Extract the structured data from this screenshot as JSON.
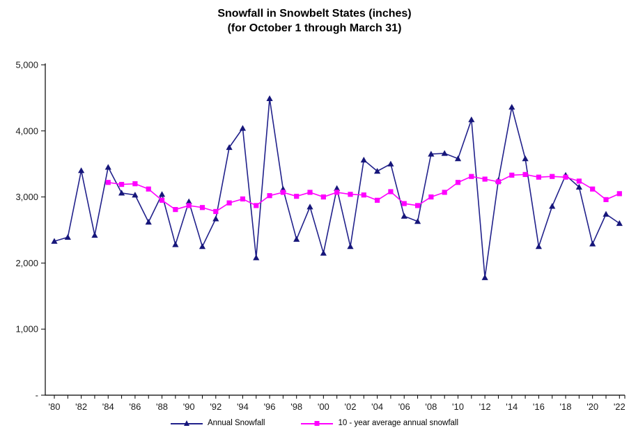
{
  "chart_data": {
    "type": "line",
    "title_line1": "Snowfall in Snowbelt States (inches)",
    "title_line2": "(for October 1 through March 31)",
    "grid": "off",
    "legend_position": "bottom-center",
    "x_axis": {
      "start_year": 1980,
      "end_year": 2022,
      "minor_tick_every_years": 1,
      "tick_labels": [
        "'80",
        "'82",
        "'84",
        "'86",
        "'88",
        "'90",
        "'92",
        "'94",
        "'96",
        "'98",
        "'00",
        "'02",
        "'04",
        "'06",
        "'08",
        "'10",
        "'12",
        "'14",
        "'16",
        "'18",
        "'20",
        "'22"
      ]
    },
    "y_axis": {
      "min": 0,
      "max": 5000,
      "ticks": [
        {
          "value": 0,
          "label": "-"
        },
        {
          "value": 1000,
          "label": "1,000"
        },
        {
          "value": 2000,
          "label": "2,000"
        },
        {
          "value": 3000,
          "label": "3,000"
        },
        {
          "value": 4000,
          "label": "4,000"
        },
        {
          "value": 5000,
          "label": "5,000"
        }
      ]
    },
    "series": [
      {
        "name": "Annual Snowfall",
        "color": "#21218B",
        "marker_color": "#16167A",
        "marker": "triangle",
        "start_year": 1980,
        "values": [
          2330,
          2390,
          3400,
          2420,
          3450,
          3060,
          3030,
          2620,
          3040,
          2280,
          2930,
          2250,
          2670,
          3750,
          4040,
          2080,
          4490,
          3120,
          2360,
          2850,
          2150,
          3130,
          2250,
          3560,
          3390,
          3500,
          2710,
          2630,
          3650,
          3660,
          3580,
          4170,
          1780,
          3250,
          4360,
          3580,
          2250,
          2860,
          3330,
          3150,
          2290,
          2740,
          2600
        ]
      },
      {
        "name": "10 - year average annual snowfall",
        "color": "#FF00FF",
        "marker_color": "#FF00FF",
        "marker": "square",
        "start_year": 1984,
        "values": [
          3220,
          3190,
          3200,
          3120,
          2950,
          2810,
          2870,
          2840,
          2780,
          2910,
          2970,
          2870,
          3020,
          3070,
          3010,
          3070,
          3000,
          3070,
          3040,
          3030,
          2950,
          3080,
          2900,
          2870,
          3000,
          3070,
          3220,
          3310,
          3270,
          3230,
          3330,
          3340,
          3300,
          3310,
          3300,
          3240,
          3120,
          2960,
          3050
        ]
      }
    ]
  }
}
